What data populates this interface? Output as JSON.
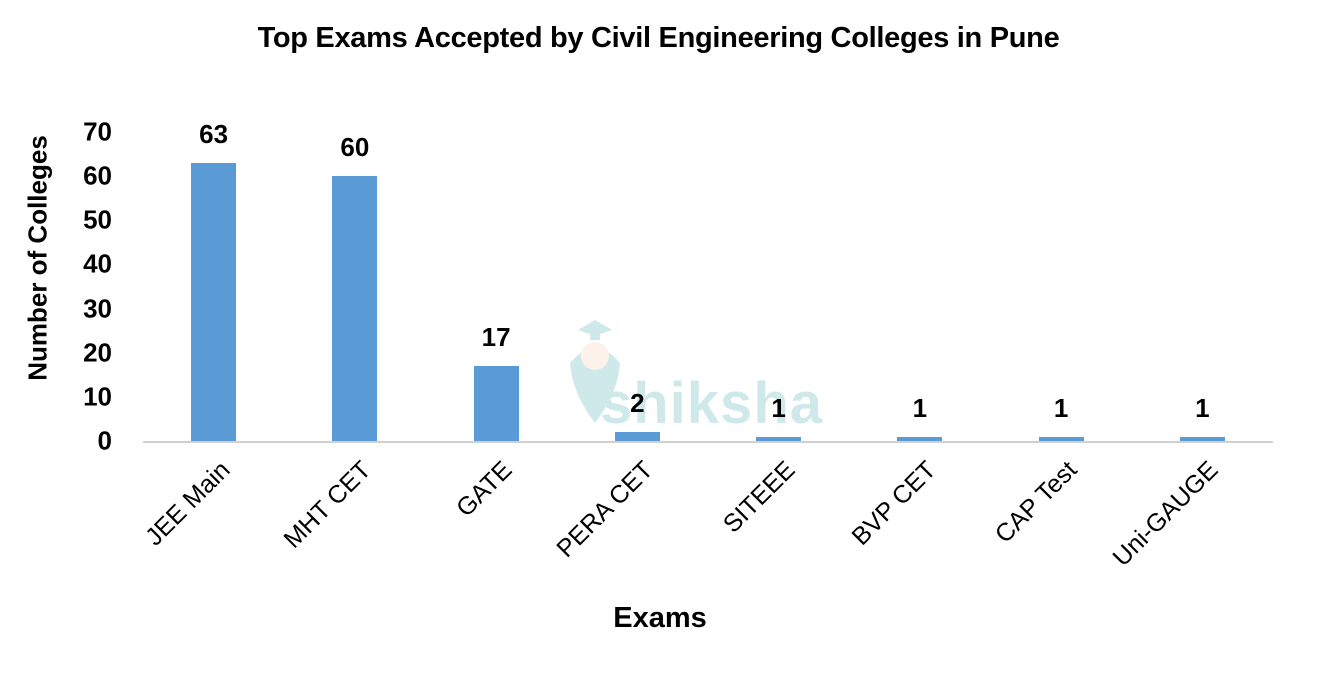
{
  "chart_data": {
    "type": "bar",
    "title": "Top Exams Accepted by Civil Engineering Colleges in Pune",
    "xlabel": "Exams",
    "ylabel": "Number of Colleges",
    "categories": [
      "JEE Main",
      "MHT CET",
      "GATE",
      "PERA CET",
      "SITEEE",
      "BVP CET",
      "CAP Test",
      "Uni-GAUGE"
    ],
    "values": [
      63,
      60,
      17,
      2,
      1,
      1,
      1,
      1
    ],
    "data_labels": [
      "63",
      "60",
      "17",
      "2",
      "1",
      "1",
      "1",
      "1"
    ],
    "ylim": [
      0,
      70
    ],
    "yticks": [
      "0",
      "10",
      "20",
      "30",
      "40",
      "50",
      "60",
      "70"
    ],
    "grid": false,
    "legend": null,
    "bar_color": "#5b9bd5"
  },
  "watermark": {
    "text": "shiksha",
    "icon": "graduation-cap-pen-icon"
  }
}
